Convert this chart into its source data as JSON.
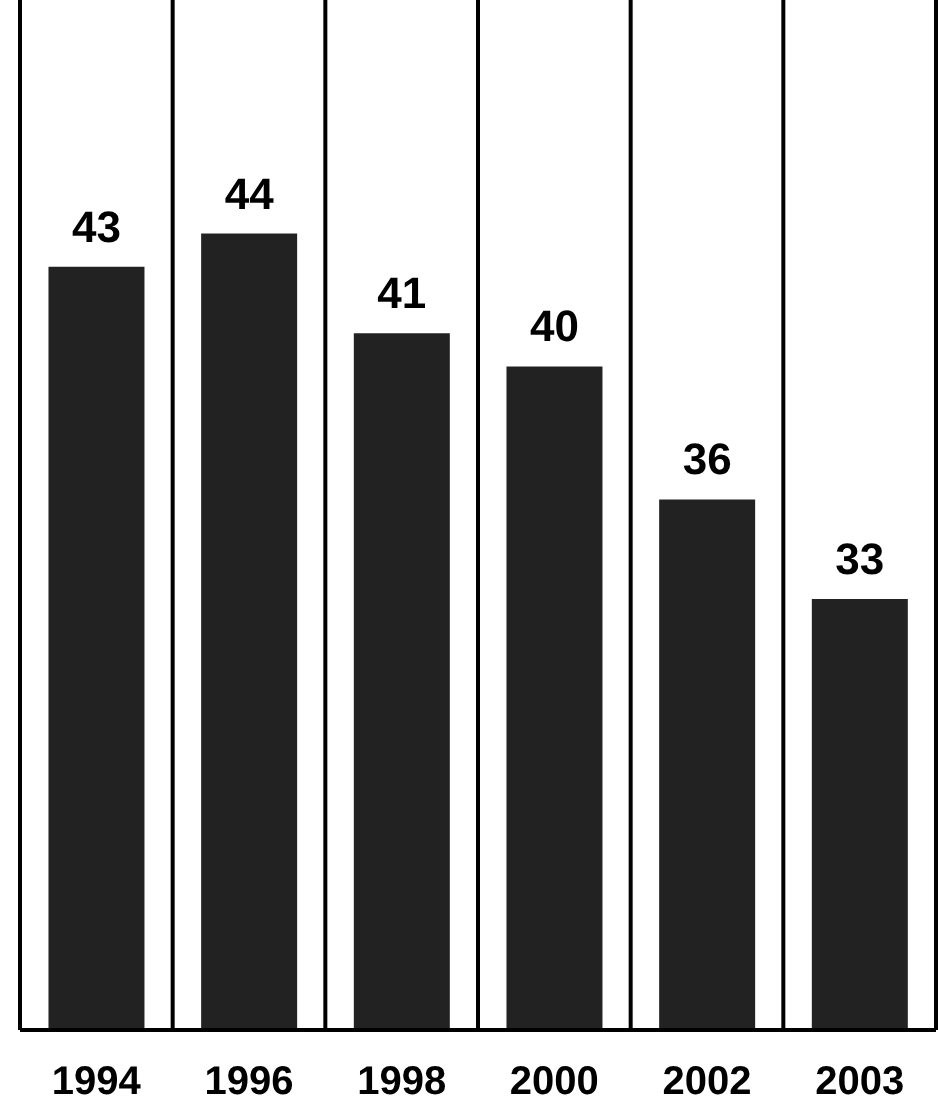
{
  "chart_data": {
    "type": "bar",
    "categories": [
      "1994",
      "1996",
      "1998",
      "2000",
      "2002",
      "2003"
    ],
    "values": [
      43,
      44,
      41,
      40,
      36,
      33
    ],
    "color": "#222222",
    "ylim": [
      20,
      51
    ],
    "data_labels": true,
    "grid": "x"
  }
}
